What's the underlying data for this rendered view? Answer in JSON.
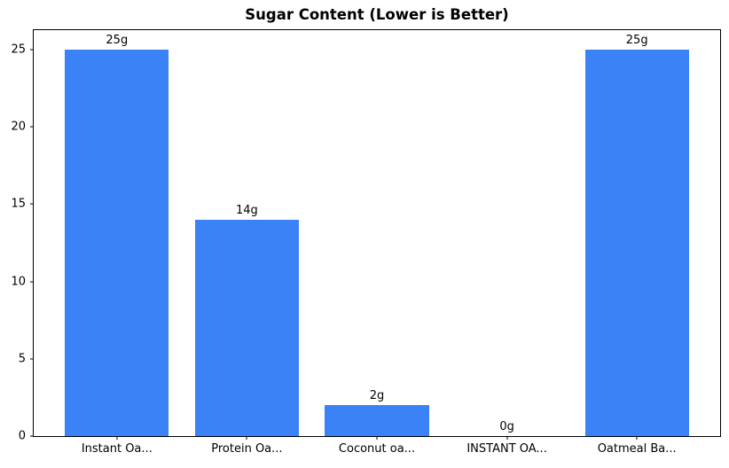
{
  "title": "Sugar Content (Lower is Better)",
  "chart_data": {
    "type": "bar",
    "title": "Sugar Content (Lower is Better)",
    "categories": [
      "Instant Oa...",
      "Protein Oa...",
      "Coconut oa...",
      "INSTANT OA...",
      "Oatmeal Ba..."
    ],
    "values": [
      25,
      14,
      2,
      0,
      25
    ],
    "value_labels": [
      "25g",
      "14g",
      "2g",
      "0g",
      "25g"
    ],
    "xlabel": "",
    "ylabel": "",
    "ylim": [
      0,
      26.25
    ],
    "yticks": [
      0,
      5,
      10,
      15,
      20,
      25
    ],
    "bar_width": 0.8,
    "grid": false,
    "bar_color": "#3b82f6",
    "axis_color": "#000000",
    "background_color": "#ffffff"
  }
}
